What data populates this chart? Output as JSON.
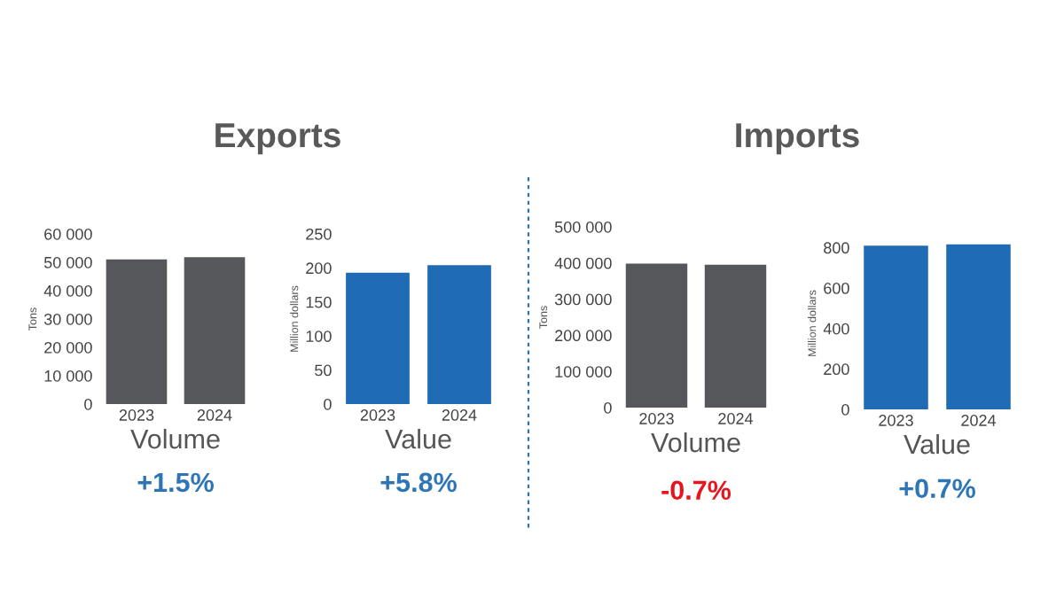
{
  "chart_data": [
    {
      "type": "bar",
      "title": "Exports",
      "categories": [
        "2023",
        "2024"
      ],
      "values": [
        51000,
        51800
      ],
      "color": "#55575b",
      "ylabel": "Tons",
      "xlabel": "Volume",
      "annotations": [
        "+1.5%"
      ],
      "ylim": [
        0,
        60000
      ],
      "yticks": [
        0,
        {
          "value": 10000,
          "label": "10 000"
        },
        {
          "value": 20000,
          "label": "20 000"
        },
        {
          "value": 30000,
          "label": "30 000"
        },
        {
          "value": 40000,
          "label": "40 000"
        },
        {
          "value": 50000,
          "label": "50 000"
        },
        {
          "value": 60000,
          "label": "60 000"
        }
      ]
    },
    {
      "type": "bar",
      "categories": [
        "2023",
        "2024"
      ],
      "values": [
        193,
        204
      ],
      "color": "#1f6bb4",
      "ylabel": "Million dollars",
      "xlabel": "Value",
      "annotations": [
        "+5.8%"
      ],
      "ylim": [
        0,
        250
      ],
      "yticks": [
        0,
        50,
        100,
        150,
        200,
        250
      ]
    },
    {
      "type": "bar",
      "title": "Imports",
      "categories": [
        "2023",
        "2024"
      ],
      "values": [
        398000,
        395000
      ],
      "color": "#55575b",
      "ylabel": "Tons",
      "xlabel": "Volume",
      "annotations": [
        "-0.7%"
      ],
      "ylim": [
        0,
        500000
      ],
      "yticks": [
        0,
        {
          "value": 100000,
          "label": "100 000"
        },
        {
          "value": 200000,
          "label": "200 000"
        },
        {
          "value": 300000,
          "label": "300 000"
        },
        {
          "value": 400000,
          "label": "400 000"
        },
        {
          "value": 500000,
          "label": "500 000"
        }
      ]
    },
    {
      "type": "bar",
      "categories": [
        "2023",
        "2024"
      ],
      "values": [
        810,
        816
      ],
      "color": "#1f6bb4",
      "ylabel": "Million dollars",
      "xlabel": "Value",
      "annotations": [
        "+0.7%"
      ],
      "ylim": [
        0,
        850
      ],
      "yticks": [
        0,
        200,
        400,
        600,
        800
      ]
    }
  ]
}
